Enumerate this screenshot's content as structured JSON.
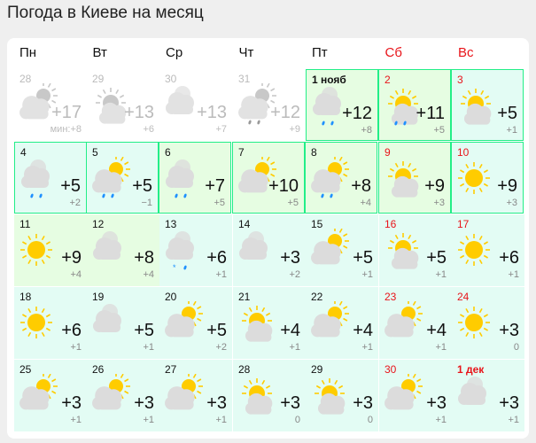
{
  "title": "Погода в Киеве на месяц",
  "weekdays": [
    {
      "label": "Пн",
      "weekend": false
    },
    {
      "label": "Вт",
      "weekend": false
    },
    {
      "label": "Ср",
      "weekend": false
    },
    {
      "label": "Чт",
      "weekend": false
    },
    {
      "label": "Пт",
      "weekend": false
    },
    {
      "label": "Сб",
      "weekend": true
    },
    {
      "label": "Вс",
      "weekend": true
    }
  ],
  "colors": {
    "sun": "#ffcc00",
    "cloud": "#dcdcdc",
    "rain": "#1e90ff",
    "weekend": "#e8141a",
    "border": "#22ee88"
  },
  "weeks": [
    [
      {
        "date": "28",
        "max": "+17",
        "min": "мин:+8",
        "icon": "cloud-sun",
        "past": true
      },
      {
        "date": "29",
        "max": "+13",
        "min": "+6",
        "icon": "sun-cloud",
        "past": true
      },
      {
        "date": "30",
        "max": "+13",
        "min": "+7",
        "icon": "cloud",
        "past": true
      },
      {
        "date": "31",
        "max": "+12",
        "min": "+9",
        "icon": "cloud-sun-rain",
        "past": true
      },
      {
        "date": "1 нояб",
        "max": "+12",
        "min": "+8",
        "icon": "cloud-rain",
        "tone": "g",
        "bold": true
      },
      {
        "date": "2",
        "max": "+11",
        "min": "+5",
        "icon": "sun-cloud-rain",
        "tone": "g",
        "weekend": true
      },
      {
        "date": "3",
        "max": "+5",
        "min": "+1",
        "icon": "sun-cloud",
        "tone": "c",
        "weekend": true
      }
    ],
    [
      {
        "date": "4",
        "max": "+5",
        "min": "+2",
        "icon": "cloud-rain",
        "tone": "c"
      },
      {
        "date": "5",
        "max": "+5",
        "min": "−1",
        "icon": "cloud-sun-rain",
        "tone": "c"
      },
      {
        "date": "6",
        "max": "+7",
        "min": "+5",
        "icon": "cloud-rain",
        "tone": "g"
      },
      {
        "date": "7",
        "max": "+10",
        "min": "+5",
        "icon": "cloud-sun",
        "tone": "g"
      },
      {
        "date": "8",
        "max": "+8",
        "min": "+4",
        "icon": "cloud-sun-rain",
        "tone": "g"
      },
      {
        "date": "9",
        "max": "+9",
        "min": "+3",
        "icon": "sun-cloud",
        "tone": "g",
        "weekend": true
      },
      {
        "date": "10",
        "max": "+9",
        "min": "+3",
        "icon": "sun",
        "tone": "c",
        "weekend": true
      }
    ],
    [
      {
        "date": "11",
        "max": "+9",
        "min": "+4",
        "icon": "sun",
        "tone": "g"
      },
      {
        "date": "12",
        "max": "+8",
        "min": "+4",
        "icon": "cloud",
        "tone": "g"
      },
      {
        "date": "13",
        "max": "+6",
        "min": "+1",
        "icon": "cloud-snow",
        "tone": "c"
      },
      {
        "date": "14",
        "max": "+3",
        "min": "+2",
        "icon": "cloud",
        "tone": "c"
      },
      {
        "date": "15",
        "max": "+5",
        "min": "+1",
        "icon": "cloud-sun",
        "tone": "c"
      },
      {
        "date": "16",
        "max": "+5",
        "min": "+1",
        "icon": "sun-cloud",
        "tone": "c",
        "weekend": true
      },
      {
        "date": "17",
        "max": "+6",
        "min": "+1",
        "icon": "sun",
        "tone": "c",
        "weekend": true
      }
    ],
    [
      {
        "date": "18",
        "max": "+6",
        "min": "+1",
        "icon": "sun",
        "tone": "c"
      },
      {
        "date": "19",
        "max": "+5",
        "min": "+1",
        "icon": "cloud",
        "tone": "c"
      },
      {
        "date": "20",
        "max": "+5",
        "min": "+2",
        "icon": "cloud-sun",
        "tone": "c"
      },
      {
        "date": "21",
        "max": "+4",
        "min": "+1",
        "icon": "sun-cloud",
        "tone": "c"
      },
      {
        "date": "22",
        "max": "+4",
        "min": "+1",
        "icon": "cloud-sun",
        "tone": "c"
      },
      {
        "date": "23",
        "max": "+4",
        "min": "+1",
        "icon": "cloud-sun",
        "tone": "c",
        "weekend": true
      },
      {
        "date": "24",
        "max": "+3",
        "min": "0",
        "icon": "sun",
        "tone": "c",
        "weekend": true
      }
    ],
    [
      {
        "date": "25",
        "max": "+3",
        "min": "+1",
        "icon": "cloud-sun",
        "tone": "c"
      },
      {
        "date": "26",
        "max": "+3",
        "min": "+1",
        "icon": "cloud-sun",
        "tone": "c"
      },
      {
        "date": "27",
        "max": "+3",
        "min": "+1",
        "icon": "cloud-sun",
        "tone": "c"
      },
      {
        "date": "28",
        "max": "+3",
        "min": "0",
        "icon": "sun-cloud",
        "tone": "c"
      },
      {
        "date": "29",
        "max": "+3",
        "min": "0",
        "icon": "sun-cloud",
        "tone": "c"
      },
      {
        "date": "30",
        "max": "+3",
        "min": "+1",
        "icon": "cloud-sun",
        "tone": "c",
        "weekend": true
      },
      {
        "date": "1 дек",
        "max": "+3",
        "min": "+1",
        "icon": "cloud",
        "tone": "c",
        "weekend": true,
        "bold": true
      }
    ]
  ]
}
